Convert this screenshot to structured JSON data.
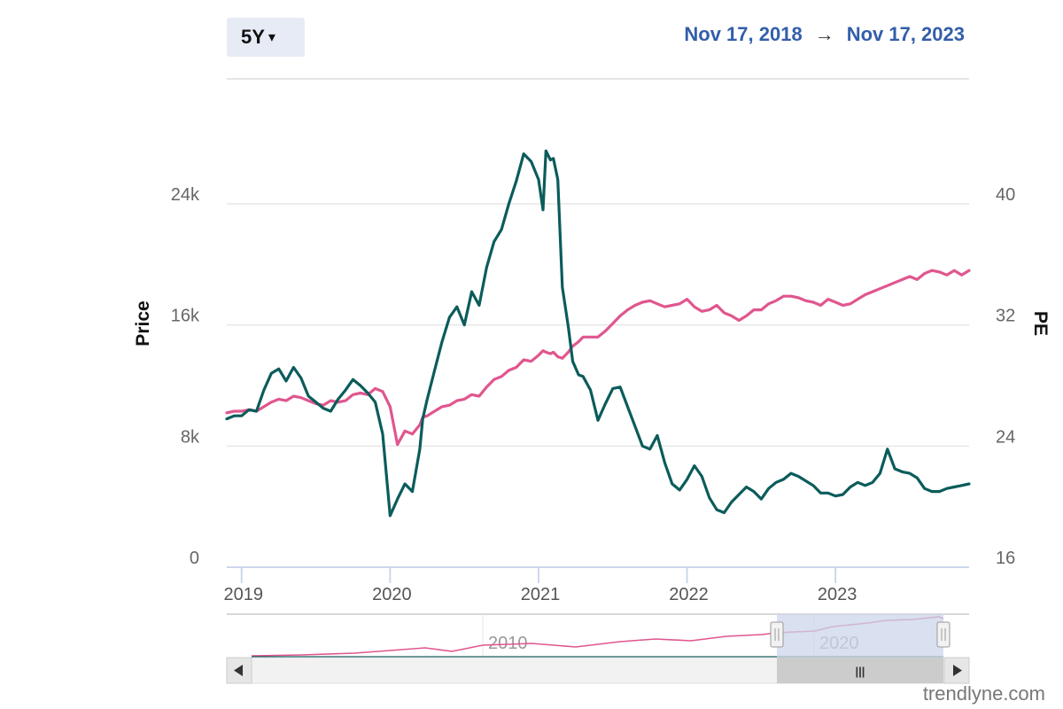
{
  "range_selector": {
    "label": "5Y",
    "caret": "▾"
  },
  "date_range": {
    "from": "Nov 17, 2018",
    "arrow": "→",
    "to": "Nov 17, 2023"
  },
  "watermark": "trendlyne.com",
  "navigator": {
    "labels": [
      "2010",
      "2020"
    ],
    "grip": "|||"
  },
  "colors": {
    "price": "#0b5c5b",
    "pe": "#e0568e",
    "accent": "#335eaa",
    "nav_mask": "#ccd6eb"
  },
  "chart_data": {
    "type": "line",
    "title": "",
    "x_ticks": [
      "2019",
      "2020",
      "2021",
      "2022",
      "2023"
    ],
    "x_tick_values": [
      2019.0,
      2020.0,
      2021.0,
      2022.0,
      2023.0
    ],
    "xlim": [
      2018.9,
      2023.9
    ],
    "y_left": {
      "label": "Price",
      "ticks": [
        "0",
        "8k",
        "16k",
        "24k"
      ],
      "tick_values": [
        0,
        8000,
        16000,
        24000
      ],
      "ylim": [
        0,
        24000
      ]
    },
    "y_right": {
      "label": "PE",
      "ticks": [
        "16",
        "24",
        "32",
        "40"
      ],
      "tick_values": [
        16,
        24,
        32,
        40
      ],
      "ylim": [
        16,
        40
      ]
    },
    "series": [
      {
        "axis": "left",
        "x": [
          2018.9,
          2018.95,
          2019.0,
          2019.05,
          2019.1,
          2019.15,
          2019.2,
          2019.25,
          2019.3,
          2019.35,
          2019.4,
          2019.45,
          2019.5,
          2019.55,
          2019.6,
          2019.65,
          2019.7,
          2019.75,
          2019.8,
          2019.85,
          2019.9,
          2019.95,
          2020.0,
          2020.05,
          2020.1,
          2020.15,
          2020.2,
          2020.22,
          2020.25,
          2020.3,
          2020.35,
          2020.4,
          2020.45,
          2020.5,
          2020.55,
          2020.6,
          2020.65,
          2020.7,
          2020.75,
          2020.8,
          2020.85,
          2020.9,
          2020.95,
          2021.0,
          2021.03,
          2021.05,
          2021.08,
          2021.1,
          2021.13,
          2021.16,
          2021.2,
          2021.23,
          2021.27,
          2021.3,
          2021.35,
          2021.4,
          2021.45,
          2021.5,
          2021.55,
          2021.6,
          2021.65,
          2021.7,
          2021.75,
          2021.8,
          2021.85,
          2021.9,
          2021.95,
          2022.0,
          2022.05,
          2022.1,
          2022.15,
          2022.2,
          2022.25,
          2022.3,
          2022.35,
          2022.4,
          2022.45,
          2022.5,
          2022.55,
          2022.6,
          2022.65,
          2022.7,
          2022.75,
          2022.8,
          2022.85,
          2022.9,
          2022.95,
          2023.0,
          2023.05,
          2023.1,
          2023.15,
          2023.2,
          2023.25,
          2023.3,
          2023.35,
          2023.4,
          2023.45,
          2023.5,
          2023.55,
          2023.6,
          2023.65,
          2023.7,
          2023.75,
          2023.8,
          2023.85,
          2023.9
        ],
        "y": [
          9800,
          10000,
          10000,
          10400,
          10300,
          11700,
          12800,
          13100,
          12300,
          13200,
          12500,
          11300,
          10900,
          10500,
          10300,
          11100,
          11700,
          12400,
          12000,
          11500,
          10900,
          8800,
          3400,
          4500,
          5500,
          5000,
          7800,
          9800,
          11100,
          13000,
          14900,
          16500,
          17200,
          16000,
          18200,
          17300,
          19800,
          21500,
          22300,
          24000,
          25500,
          27300,
          26800,
          25600,
          23600,
          27500,
          26900,
          27000,
          25600,
          18500,
          15900,
          13600,
          12700,
          12600,
          11700,
          9700,
          10800,
          11800,
          11900,
          10600,
          9300,
          8000,
          7800,
          8700,
          6900,
          5500,
          5100,
          5800,
          6700,
          6000,
          4600,
          3800,
          3600,
          4300,
          4800,
          5300,
          5000,
          4500,
          5200,
          5600,
          5800,
          6200,
          6000,
          5700,
          5400,
          4900,
          4900,
          4700,
          4800,
          5300,
          5600,
          5400,
          5600,
          6200,
          7800,
          6500,
          6300,
          6200,
          5900,
          5200,
          5000,
          5000,
          5200,
          5300,
          5400,
          5500
        ]
      },
      {
        "axis": "right",
        "x": [
          2018.9,
          2018.95,
          2019.0,
          2019.05,
          2019.1,
          2019.15,
          2019.2,
          2019.25,
          2019.3,
          2019.35,
          2019.4,
          2019.45,
          2019.5,
          2019.55,
          2019.6,
          2019.65,
          2019.7,
          2019.75,
          2019.8,
          2019.85,
          2019.9,
          2019.95,
          2020.0,
          2020.05,
          2020.1,
          2020.15,
          2020.2,
          2020.22,
          2020.25,
          2020.3,
          2020.35,
          2020.4,
          2020.45,
          2020.5,
          2020.55,
          2020.6,
          2020.65,
          2020.7,
          2020.75,
          2020.8,
          2020.85,
          2020.9,
          2020.95,
          2021.0,
          2021.03,
          2021.05,
          2021.08,
          2021.1,
          2021.13,
          2021.16,
          2021.2,
          2021.23,
          2021.27,
          2021.3,
          2021.35,
          2021.4,
          2021.45,
          2021.5,
          2021.55,
          2021.6,
          2021.65,
          2021.7,
          2021.75,
          2021.8,
          2021.85,
          2021.9,
          2021.95,
          2022.0,
          2022.05,
          2022.1,
          2022.15,
          2022.2,
          2022.25,
          2022.3,
          2022.35,
          2022.4,
          2022.45,
          2022.5,
          2022.55,
          2022.6,
          2022.65,
          2022.7,
          2022.75,
          2022.8,
          2022.85,
          2022.9,
          2022.95,
          2023.0,
          2023.05,
          2023.1,
          2023.15,
          2023.2,
          2023.25,
          2023.3,
          2023.35,
          2023.4,
          2023.45,
          2023.5,
          2023.55,
          2023.6,
          2023.65,
          2023.7,
          2023.75,
          2023.8,
          2023.85,
          2023.9
        ],
        "y": [
          26.2,
          26.3,
          26.3,
          26.4,
          26.3,
          26.6,
          26.9,
          27.1,
          27.0,
          27.3,
          27.2,
          27.0,
          26.8,
          26.7,
          27.0,
          26.9,
          27.0,
          27.4,
          27.5,
          27.4,
          27.8,
          27.6,
          26.6,
          24.1,
          25.0,
          24.8,
          25.4,
          25.9,
          26.0,
          26.3,
          26.6,
          26.7,
          27.0,
          27.1,
          27.4,
          27.3,
          27.9,
          28.4,
          28.6,
          29.0,
          29.2,
          29.7,
          29.6,
          30.0,
          30.3,
          30.2,
          30.1,
          30.2,
          29.9,
          29.8,
          30.2,
          30.6,
          30.9,
          31.2,
          31.2,
          31.2,
          31.6,
          32.1,
          32.6,
          33.0,
          33.3,
          33.5,
          33.6,
          33.4,
          33.2,
          33.3,
          33.4,
          33.7,
          33.2,
          32.9,
          33.0,
          33.3,
          32.8,
          32.6,
          32.3,
          32.6,
          33.0,
          33.0,
          33.4,
          33.6,
          33.9,
          33.9,
          33.8,
          33.6,
          33.5,
          33.3,
          33.7,
          33.5,
          33.3,
          33.4,
          33.7,
          34.0,
          34.2,
          34.4,
          34.6,
          34.8,
          35.0,
          35.2,
          35.0,
          35.4,
          35.6,
          35.5,
          35.3,
          35.6,
          35.3,
          35.6
        ]
      }
    ]
  }
}
